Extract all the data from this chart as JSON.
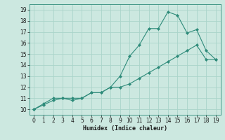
{
  "xlabel": "Humidex (Indice chaleur)",
  "xlim": [
    -0.5,
    19.5
  ],
  "ylim": [
    9.5,
    19.5
  ],
  "xticks": [
    0,
    1,
    2,
    3,
    4,
    5,
    6,
    7,
    8,
    9,
    10,
    11,
    12,
    13,
    14,
    15,
    16,
    17,
    18,
    19
  ],
  "yticks": [
    10,
    11,
    12,
    13,
    14,
    15,
    16,
    17,
    18,
    19
  ],
  "line_color": "#2e8b7a",
  "bg_color": "#cce8e0",
  "grid_color": "#aad4ca",
  "line1_x": [
    0,
    1,
    2,
    3,
    4,
    5,
    6,
    7,
    8,
    9,
    10,
    11,
    12,
    13,
    14,
    15,
    16,
    17,
    18,
    19
  ],
  "line1_y": [
    10.0,
    10.5,
    11.0,
    11.0,
    11.0,
    11.0,
    11.5,
    11.5,
    12.0,
    13.0,
    14.8,
    15.8,
    17.3,
    17.3,
    18.8,
    18.5,
    16.9,
    17.2,
    15.3,
    14.5
  ],
  "line2_x": [
    0,
    1,
    2,
    3,
    4,
    5,
    6,
    7,
    8,
    9,
    10,
    11,
    12,
    13,
    14,
    15,
    16,
    17,
    18,
    19
  ],
  "line2_y": [
    10.0,
    10.4,
    10.8,
    11.0,
    10.8,
    11.0,
    11.5,
    11.5,
    12.0,
    12.0,
    12.3,
    12.8,
    13.3,
    13.8,
    14.3,
    14.8,
    15.3,
    15.8,
    14.5,
    14.5
  ]
}
